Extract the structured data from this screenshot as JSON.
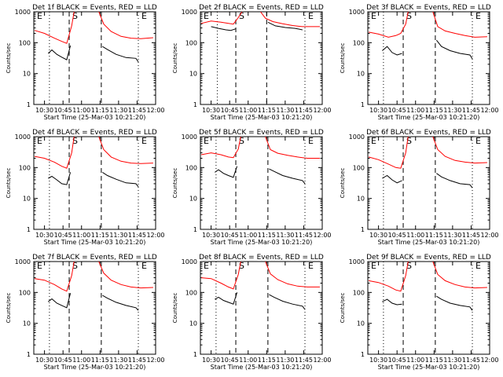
{
  "colors": {
    "events": "#000000",
    "lld": "#ff0000",
    "axis": "#000000",
    "background": "#ffffff"
  },
  "common": {
    "xlabel": "Start Time (25-Mar-03 10:21:20)",
    "ylabel": "Counts/sec",
    "x_ticks": [
      "10:30",
      "10:45",
      "11:00",
      "11:15",
      "11:30",
      "11:45",
      "12:00"
    ],
    "y_ticks": [
      "1",
      "10",
      "100",
      "1000"
    ],
    "marker_labels": [
      "S",
      "E",
      "E"
    ]
  },
  "chart_data": [
    {
      "type": "line",
      "title": "Det 1f BLACK = Events, RED = LLD",
      "xlim": [
        "10:21:20",
        "12:00"
      ],
      "ylim": [
        1,
        1000
      ],
      "y_scale": "log",
      "x_markers": [
        "10:34",
        "10:50",
        "11:16",
        "11:46"
      ],
      "series": [
        {
          "name": "Events",
          "segments": [
            {
              "x": [
                "10:33",
                "10:36",
                "10:40",
                "10:44",
                "10:48",
                "10:51"
              ],
              "y": [
                45,
                58,
                42,
                34,
                28,
                80
              ]
            },
            {
              "x": [
                "11:17",
                "11:21",
                "11:28",
                "11:36",
                "11:44",
                "11:46"
              ],
              "y": [
                75,
                60,
                42,
                33,
                31,
                24
              ]
            }
          ]
        },
        {
          "name": "LLD",
          "segments": [
            {
              "x": [
                "10:22",
                "10:30",
                "10:38",
                "10:44",
                "10:48",
                "10:52",
                "10:54"
              ],
              "y": [
                250,
                200,
                140,
                110,
                95,
                350,
                1000
              ]
            },
            {
              "x": [
                "11:14",
                "11:18",
                "11:24",
                "11:32",
                "11:40",
                "11:48",
                "11:58"
              ],
              "y": [
                1000,
                400,
                230,
                160,
                140,
                135,
                145
              ]
            }
          ]
        }
      ]
    },
    {
      "type": "line",
      "title": "Det 2f BLACK = Events, RED = LLD",
      "xlim": [
        "10:21:20",
        "12:00"
      ],
      "ylim": [
        1,
        1000
      ],
      "y_scale": "log",
      "x_markers": [
        "10:35",
        "10:50",
        "11:15",
        "11:46"
      ],
      "series": [
        {
          "name": "Events",
          "segments": [
            {
              "x": [
                "10:30",
                "10:36",
                "10:42",
                "10:46",
                "10:50"
              ],
              "y": [
                330,
                290,
                260,
                250,
                280
              ]
            },
            {
              "x": [
                "11:16",
                "11:22",
                "11:30",
                "11:38",
                "11:44"
              ],
              "y": [
                460,
                350,
                310,
                290,
                260
              ]
            }
          ]
        },
        {
          "name": "LLD",
          "segments": [
            {
              "x": [
                "10:22",
                "10:30",
                "10:38",
                "10:44",
                "10:48",
                "10:52",
                "10:55"
              ],
              "y": [
                420,
                500,
                460,
                420,
                400,
                650,
                1000
              ]
            },
            {
              "x": [
                "11:10",
                "11:14",
                "11:20",
                "11:28",
                "11:36",
                "11:44",
                "11:52",
                "11:58"
              ],
              "y": [
                1000,
                620,
                480,
                410,
                360,
                330,
                330,
                330
              ]
            }
          ]
        }
      ]
    },
    {
      "type": "line",
      "title": "Det 3f BLACK = Events, RED = LLD",
      "xlim": [
        "10:21:20",
        "12:00"
      ],
      "ylim": [
        1,
        1000
      ],
      "y_scale": "log",
      "x_markers": [
        "10:34",
        "10:50",
        "11:16",
        "11:46"
      ],
      "series": [
        {
          "name": "Events",
          "segments": [
            {
              "x": [
                "10:33",
                "10:37",
                "10:41",
                "10:45",
                "10:49"
              ],
              "y": [
                55,
                75,
                48,
                40,
                45
              ]
            },
            {
              "x": [
                "11:17",
                "11:21",
                "11:28",
                "11:36",
                "11:44",
                "11:46"
              ],
              "y": [
                120,
                75,
                55,
                45,
                40,
                30
              ]
            }
          ]
        },
        {
          "name": "LLD",
          "segments": [
            {
              "x": [
                "10:22",
                "10:30",
                "10:38",
                "10:44",
                "10:48",
                "10:52",
                "10:54"
              ],
              "y": [
                220,
                190,
                150,
                170,
                200,
                400,
                1000
              ]
            },
            {
              "x": [
                "11:14",
                "11:18",
                "11:24",
                "11:32",
                "11:40",
                "11:48",
                "11:58"
              ],
              "y": [
                1000,
                330,
                240,
                200,
                170,
                150,
                155
              ]
            }
          ]
        }
      ]
    },
    {
      "type": "line",
      "title": "Det 4f BLACK = Events, RED = LLD",
      "xlim": [
        "10:21:20",
        "12:00"
      ],
      "ylim": [
        1,
        1000
      ],
      "y_scale": "log",
      "x_markers": [
        "10:34",
        "10:50",
        "11:16",
        "11:46"
      ],
      "series": [
        {
          "name": "Events",
          "segments": [
            {
              "x": [
                "10:33",
                "10:36",
                "10:40",
                "10:44",
                "10:48",
                "10:51"
              ],
              "y": [
                45,
                52,
                40,
                30,
                28,
                70
              ]
            },
            {
              "x": [
                "11:17",
                "11:21",
                "11:28",
                "11:36",
                "11:44",
                "11:46"
              ],
              "y": [
                70,
                55,
                42,
                32,
                30,
                24
              ]
            }
          ]
        },
        {
          "name": "LLD",
          "segments": [
            {
              "x": [
                "10:22",
                "10:30",
                "10:38",
                "10:44",
                "10:48",
                "10:52",
                "10:54"
              ],
              "y": [
                230,
                200,
                150,
                110,
                95,
                300,
                1000
              ]
            },
            {
              "x": [
                "11:14",
                "11:18",
                "11:24",
                "11:32",
                "11:40",
                "11:48",
                "11:58"
              ],
              "y": [
                1000,
                380,
                220,
                160,
                140,
                135,
                140
              ]
            }
          ]
        }
      ]
    },
    {
      "type": "line",
      "title": "Det 5f BLACK = Events, RED = LLD",
      "xlim": [
        "10:21:20",
        "12:00"
      ],
      "ylim": [
        1,
        1000
      ],
      "y_scale": "log",
      "x_markers": [
        "10:34",
        "10:50",
        "11:16",
        "11:46"
      ],
      "series": [
        {
          "name": "Events",
          "segments": [
            {
              "x": [
                "10:33",
                "10:36",
                "10:40",
                "10:44",
                "10:48",
                "10:51"
              ],
              "y": [
                70,
                85,
                65,
                55,
                48,
                110
              ]
            },
            {
              "x": [
                "11:17",
                "11:21",
                "11:28",
                "11:36",
                "11:44",
                "11:46"
              ],
              "y": [
                90,
                75,
                55,
                45,
                38,
                30
              ]
            }
          ]
        },
        {
          "name": "LLD",
          "segments": [
            {
              "x": [
                "10:22",
                "10:30",
                "10:38",
                "10:44",
                "10:48",
                "10:52",
                "10:54"
              ],
              "y": [
                260,
                300,
                260,
                220,
                210,
                400,
                1000
              ]
            },
            {
              "x": [
                "11:14",
                "11:18",
                "11:24",
                "11:32",
                "11:40",
                "11:48",
                "11:58"
              ],
              "y": [
                1000,
                380,
                290,
                250,
                220,
                200,
                200
              ]
            }
          ]
        }
      ]
    },
    {
      "type": "line",
      "title": "Det 6f BLACK = Events, RED = LLD",
      "xlim": [
        "10:21:20",
        "12:00"
      ],
      "ylim": [
        1,
        1000
      ],
      "y_scale": "log",
      "x_markers": [
        "10:34",
        "10:50",
        "11:16",
        "11:46"
      ],
      "series": [
        {
          "name": "Events",
          "segments": [
            {
              "x": [
                "10:33",
                "10:37",
                "10:41",
                "10:45",
                "10:49"
              ],
              "y": [
                45,
                55,
                40,
                32,
                38
              ]
            },
            {
              "x": [
                "11:17",
                "11:21",
                "11:28",
                "11:36",
                "11:44",
                "11:46"
              ],
              "y": [
                65,
                50,
                38,
                30,
                28,
                22
              ]
            }
          ]
        },
        {
          "name": "LLD",
          "segments": [
            {
              "x": [
                "10:22",
                "10:30",
                "10:38",
                "10:44",
                "10:48",
                "10:52",
                "10:54"
              ],
              "y": [
                220,
                180,
                130,
                100,
                95,
                300,
                1000
              ]
            },
            {
              "x": [
                "11:14",
                "11:18",
                "11:24",
                "11:32",
                "11:40",
                "11:48",
                "11:58"
              ],
              "y": [
                1000,
                380,
                230,
                170,
                150,
                140,
                145
              ]
            }
          ]
        }
      ]
    },
    {
      "type": "line",
      "title": "Det 7f BLACK = Events, RED = LLD",
      "xlim": [
        "10:21:20",
        "12:00"
      ],
      "ylim": [
        1,
        1000
      ],
      "y_scale": "log",
      "x_markers": [
        "10:34",
        "10:50",
        "11:16",
        "11:46"
      ],
      "series": [
        {
          "name": "Events",
          "segments": [
            {
              "x": [
                "10:33",
                "10:36",
                "10:40",
                "10:44",
                "10:48",
                "10:51"
              ],
              "y": [
                50,
                62,
                45,
                38,
                32,
                95
              ]
            },
            {
              "x": [
                "11:17",
                "11:21",
                "11:28",
                "11:36",
                "11:44",
                "11:46"
              ],
              "y": [
                80,
                65,
                48,
                38,
                32,
                26
              ]
            }
          ]
        },
        {
          "name": "LLD",
          "segments": [
            {
              "x": [
                "10:22",
                "10:30",
                "10:38",
                "10:44",
                "10:48",
                "10:52",
                "10:54"
              ],
              "y": [
                280,
                250,
                180,
                130,
                110,
                350,
                1000
              ]
            },
            {
              "x": [
                "11:14",
                "11:18",
                "11:24",
                "11:32",
                "11:40",
                "11:48",
                "11:58"
              ],
              "y": [
                1000,
                420,
                250,
                180,
                150,
                140,
                145
              ]
            }
          ]
        }
      ]
    },
    {
      "type": "line",
      "title": "Det 8f BLACK = Events, RED = LLD",
      "xlim": [
        "10:21:20",
        "12:00"
      ],
      "ylim": [
        1,
        1000
      ],
      "y_scale": "log",
      "x_markers": [
        "10:34",
        "10:50",
        "11:16",
        "11:46"
      ],
      "series": [
        {
          "name": "Events",
          "segments": [
            {
              "x": [
                "10:33",
                "10:36",
                "10:40",
                "10:44",
                "10:48",
                "10:51"
              ],
              "y": [
                60,
                70,
                55,
                48,
                42,
                100
              ]
            },
            {
              "x": [
                "11:17",
                "11:21",
                "11:28",
                "11:36",
                "11:44",
                "11:46"
              ],
              "y": [
                85,
                70,
                52,
                42,
                36,
                28
              ]
            }
          ]
        },
        {
          "name": "LLD",
          "segments": [
            {
              "x": [
                "10:22",
                "10:30",
                "10:38",
                "10:44",
                "10:48",
                "10:52",
                "10:54"
              ],
              "y": [
                300,
                280,
                200,
                150,
                130,
                380,
                1000
              ]
            },
            {
              "x": [
                "11:14",
                "11:18",
                "11:24",
                "11:32",
                "11:40",
                "11:48",
                "11:58"
              ],
              "y": [
                1000,
                400,
                260,
                190,
                160,
                150,
                150
              ]
            }
          ]
        }
      ]
    },
    {
      "type": "line",
      "title": "Det 9f BLACK = Events, RED = LLD",
      "xlim": [
        "10:21:20",
        "12:00"
      ],
      "ylim": [
        1,
        1000
      ],
      "y_scale": "log",
      "x_markers": [
        "10:34",
        "10:50",
        "11:16",
        "11:46"
      ],
      "series": [
        {
          "name": "Events",
          "segments": [
            {
              "x": [
                "10:33",
                "10:37",
                "10:41",
                "10:45",
                "10:49"
              ],
              "y": [
                50,
                60,
                45,
                40,
                42
              ]
            },
            {
              "x": [
                "11:17",
                "11:21",
                "11:28",
                "11:36",
                "11:44",
                "11:46"
              ],
              "y": [
                75,
                60,
                45,
                38,
                34,
                26
              ]
            }
          ]
        },
        {
          "name": "LLD",
          "segments": [
            {
              "x": [
                "10:22",
                "10:30",
                "10:38",
                "10:44",
                "10:48",
                "10:52",
                "10:54"
              ],
              "y": [
                240,
                210,
                160,
                120,
                110,
                350,
                1000
              ]
            },
            {
              "x": [
                "11:14",
                "11:18",
                "11:24",
                "11:32",
                "11:40",
                "11:48",
                "11:58"
              ],
              "y": [
                1000,
                380,
                240,
                180,
                150,
                140,
                145
              ]
            }
          ]
        }
      ]
    }
  ]
}
